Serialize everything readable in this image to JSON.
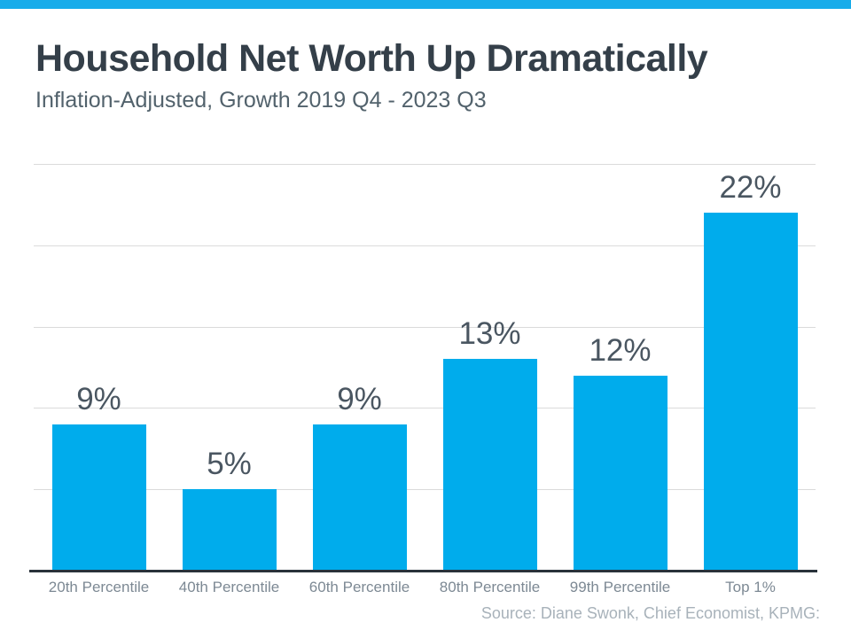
{
  "header": {
    "title": "Household Net Worth Up Dramatically",
    "subtitle": "Inflation-Adjusted, Growth 2019 Q4 - 2023 Q3"
  },
  "source": "Source: Diane Swonk, Chief Economist, KPMG:",
  "colors": {
    "accent_bar": "#18ACEA",
    "bar_fill": "#00ACEC",
    "title_text": "#343F49",
    "subtitle_text": "#52626C",
    "value_label": "#4A5661",
    "category_label": "#7D8994",
    "source_text": "#A8B2BA",
    "gridline": "#DBDBDB",
    "axis_line": "#29323A"
  },
  "chart_data": {
    "type": "bar",
    "title": "Household Net Worth Up Dramatically",
    "subtitle": "Inflation-Adjusted, Growth 2019 Q4 - 2023 Q3",
    "categories": [
      "20th Percentile",
      "40th Percentile",
      "60th Percentile",
      "80th Percentile",
      "99th Percentile",
      "Top 1%"
    ],
    "values": [
      9,
      5,
      9,
      13,
      12,
      22
    ],
    "value_labels": [
      "9%",
      "5%",
      "9%",
      "13%",
      "12%",
      "22%"
    ],
    "xlabel": "",
    "ylabel": "",
    "ylim": [
      0,
      25
    ],
    "gridline_interval": 5,
    "grid": true,
    "legend": false,
    "y_tick_labels_visible": false,
    "source": "Source: Diane Swonk, Chief Economist, KPMG:"
  }
}
